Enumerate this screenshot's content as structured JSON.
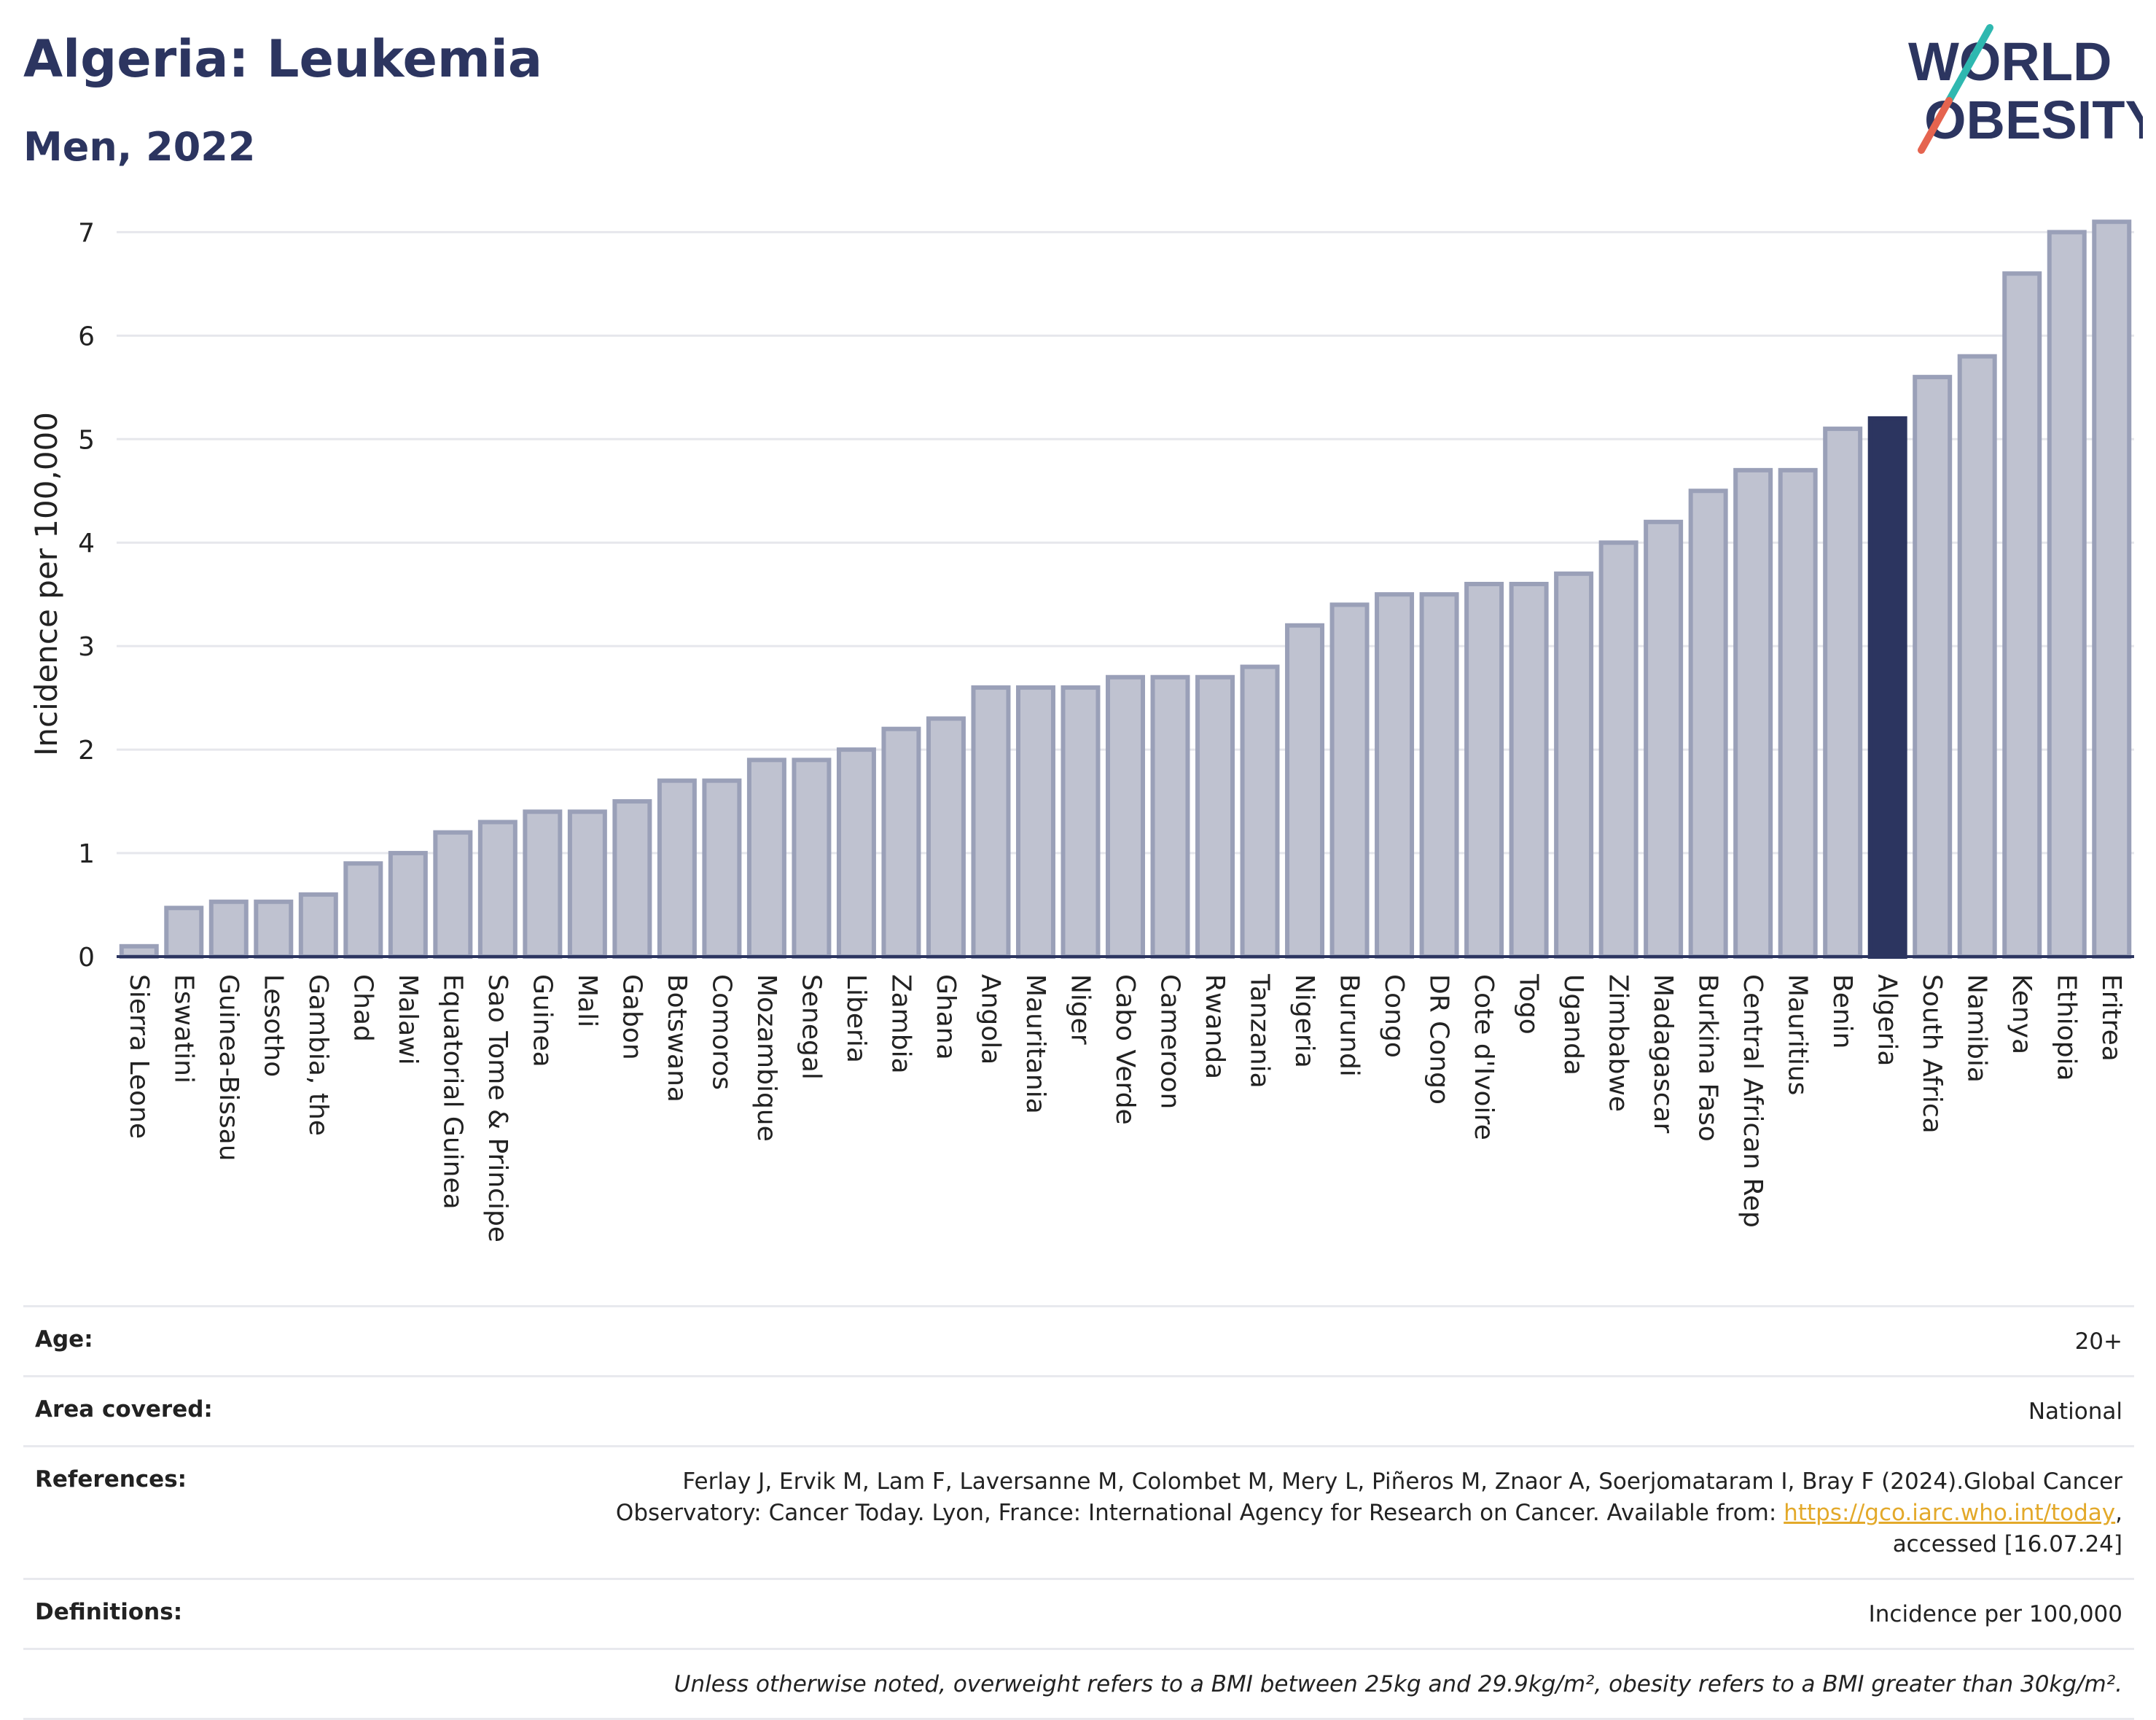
{
  "header": {
    "title": "Algeria: Leukemia",
    "subtitle": "Men, 2022",
    "logo_line1": "WORLD",
    "logo_line2": "OBESITY"
  },
  "colors": {
    "bar": "#bfc2d0",
    "bar_border": "#9aa0b8",
    "highlight": "#2c3560",
    "link": "#e3a92a"
  },
  "chart_data": {
    "type": "bar",
    "ylabel": "Incidence per 100,000",
    "xlabel": "",
    "ylim": [
      0,
      7.2
    ],
    "yticks": [
      0,
      1,
      2,
      3,
      4,
      5,
      6,
      7
    ],
    "grid": true,
    "highlight": "Algeria",
    "categories": [
      "Sierra Leone",
      "Eswatini",
      "Guinea-Bissau",
      "Lesotho",
      "Gambia, the",
      "Chad",
      "Malawi",
      "Equatorial Guinea",
      "Sao Tome & Principe",
      "Guinea",
      "Mali",
      "Gabon",
      "Botswana",
      "Comoros",
      "Mozambique",
      "Senegal",
      "Liberia",
      "Zambia",
      "Ghana",
      "Angola",
      "Mauritania",
      "Niger",
      "Cabo Verde",
      "Cameroon",
      "Rwanda",
      "Tanzania",
      "Nigeria",
      "Burundi",
      "Congo",
      "DR Congo",
      "Cote d'Ivoire",
      "Togo",
      "Uganda",
      "Zimbabwe",
      "Madagascar",
      "Burkina Faso",
      "Central African Rep",
      "Mauritius",
      "Benin",
      "Algeria",
      "South Africa",
      "Namibia",
      "Kenya",
      "Ethiopia",
      "Eritrea"
    ],
    "values": [
      0.1,
      0.47,
      0.53,
      0.53,
      0.6,
      0.9,
      1.0,
      1.2,
      1.3,
      1.4,
      1.4,
      1.5,
      1.7,
      1.7,
      1.9,
      1.9,
      2.0,
      2.2,
      2.3,
      2.6,
      2.6,
      2.6,
      2.7,
      2.7,
      2.7,
      2.8,
      3.2,
      3.4,
      3.5,
      3.5,
      3.6,
      3.6,
      3.7,
      4.0,
      4.2,
      4.5,
      4.7,
      4.7,
      5.1,
      5.2,
      5.6,
      5.8,
      6.6,
      7.0,
      7.1
    ]
  },
  "meta": {
    "age_label": "Age:",
    "age_value": "20+",
    "area_label": "Area covered:",
    "area_value": "National",
    "references_label": "References:",
    "references_text": "Ferlay J, Ervik M, Lam F, Laversanne M, Colombet M, Mery L, Piñeros M, Znaor A, Soerjomataram I, Bray F (2024).Global Cancer Observatory: Cancer Today. Lyon, France: International Agency for Research on Cancer. Available from:",
    "references_link": "https://gco.iarc.who.int/today",
    "references_suffix": ", accessed [16.07.24]",
    "definitions_label": "Definitions:",
    "definitions_value": "Incidence per 100,000",
    "note": "Unless otherwise noted, overweight refers to a BMI between 25kg and 29.9kg/m², obesity refers to a BMI greater than 30kg/m²."
  }
}
